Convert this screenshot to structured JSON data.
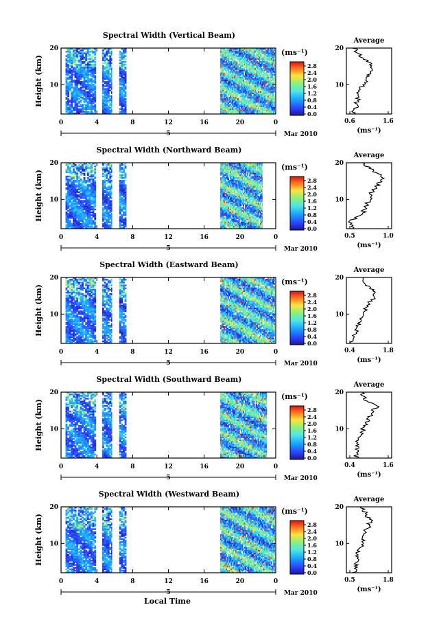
{
  "figure": {
    "xlabel": "Local Time",
    "date_label": "Mar 2010",
    "date_day": "5",
    "height_label": "Height (km)",
    "unit_label": "(ms⁻¹)",
    "avg_title": "Average"
  },
  "chart_data": [
    {
      "type": "heatmap",
      "title": "Spectral Width (Vertical Beam)",
      "xlabel": "Local Time",
      "ylabel": "Height (km)",
      "xlim": [
        0,
        24
      ],
      "ylim": [
        2,
        20
      ],
      "xticks": [
        "0",
        "4",
        "8",
        "12",
        "16",
        "20",
        "0"
      ],
      "yticks": [
        "10",
        "20"
      ],
      "colorbar": {
        "label": "(ms⁻¹)",
        "ticks": [
          "2.8",
          "2.4",
          "2.0",
          "1.6",
          "1.2",
          "0.8",
          "0.4",
          "0.0"
        ]
      },
      "data_intervals_hours": [
        [
          0.5,
          3.9
        ],
        [
          4.6,
          5.7
        ],
        [
          6.5,
          7.3
        ],
        [
          17.8,
          23.9
        ]
      ],
      "average_profile": {
        "xlabel": "(ms⁻¹)",
        "xticks": [
          "0.6",
          "1.6"
        ],
        "yticks": [
          "10",
          "20"
        ],
        "xlim": [
          0.5,
          1.7
        ],
        "heights_km": [
          2,
          4,
          6,
          8,
          10,
          12,
          14,
          16,
          18,
          20
        ],
        "values": [
          0.65,
          0.75,
          0.8,
          0.85,
          0.95,
          1.05,
          1.15,
          1.1,
          0.85,
          0.7
        ]
      }
    },
    {
      "type": "heatmap",
      "title": "Spectral Width (Northward Beam)",
      "xlabel": "Local Time",
      "ylabel": "Height (km)",
      "xlim": [
        0,
        24
      ],
      "ylim": [
        2,
        20
      ],
      "xticks": [
        "0",
        "4",
        "8",
        "12",
        "16",
        "20",
        "0"
      ],
      "yticks": [
        "10",
        "20"
      ],
      "colorbar": {
        "label": "(ms⁻¹)",
        "ticks": [
          "2.8",
          "2.4",
          "2.0",
          "1.6",
          "1.2",
          "0.8",
          "0.4",
          "0.0"
        ]
      },
      "data_intervals_hours": [
        [
          0.5,
          3.9
        ],
        [
          4.6,
          5.7
        ],
        [
          6.5,
          7.3
        ],
        [
          17.8,
          22.5
        ]
      ],
      "average_profile": {
        "xlabel": "(ms⁻¹)",
        "xticks": [
          "0.5",
          "1.0"
        ],
        "yticks": [
          "10",
          "20"
        ],
        "xlim": [
          0.5,
          1.2
        ],
        "heights_km": [
          2,
          4,
          6,
          8,
          10,
          12,
          14,
          16,
          18,
          20
        ],
        "values": [
          0.6,
          0.55,
          0.75,
          0.8,
          0.85,
          0.9,
          1.0,
          1.05,
          0.9,
          0.75
        ]
      }
    },
    {
      "type": "heatmap",
      "title": "Spectral Width (Eastward Beam)",
      "xlabel": "Local Time",
      "ylabel": "Height (km)",
      "xlim": [
        0,
        24
      ],
      "ylim": [
        2,
        20
      ],
      "xticks": [
        "0",
        "4",
        "8",
        "12",
        "16",
        "20",
        "0"
      ],
      "yticks": [
        "10",
        "20"
      ],
      "colorbar": {
        "label": "(ms⁻¹)",
        "ticks": [
          "2.8",
          "2.4",
          "2.0",
          "1.6",
          "1.2",
          "0.8",
          "0.4",
          "0.0"
        ]
      },
      "data_intervals_hours": [
        [
          0.5,
          3.9
        ],
        [
          4.6,
          5.7
        ],
        [
          6.5,
          7.3
        ],
        [
          17.8,
          23.9
        ]
      ],
      "average_profile": {
        "xlabel": "(ms⁻¹)",
        "xticks": [
          "0.4",
          "1.8"
        ],
        "yticks": [
          "10",
          "20"
        ],
        "xlim": [
          0.4,
          1.8
        ],
        "heights_km": [
          2,
          4,
          6,
          8,
          10,
          12,
          14,
          16,
          18,
          20
        ],
        "values": [
          0.55,
          0.65,
          0.75,
          0.8,
          0.9,
          1.05,
          1.2,
          1.3,
          1.0,
          0.9
        ]
      }
    },
    {
      "type": "heatmap",
      "title": "Spectral Width (Southward Beam)",
      "xlabel": "Local Time",
      "ylabel": "Height (km)",
      "xlim": [
        0,
        24
      ],
      "ylim": [
        2,
        20
      ],
      "xticks": [
        "0",
        "4",
        "8",
        "12",
        "16",
        "20",
        "0"
      ],
      "yticks": [
        "10",
        "20"
      ],
      "colorbar": {
        "label": "(ms⁻¹)",
        "ticks": [
          "2.8",
          "2.4",
          "2.0",
          "1.6",
          "1.2",
          "0.8",
          "0.4",
          "0.0"
        ]
      },
      "data_intervals_hours": [
        [
          0.5,
          3.9
        ],
        [
          4.6,
          5.7
        ],
        [
          6.5,
          7.3
        ],
        [
          17.8,
          23.0
        ]
      ],
      "average_profile": {
        "xlabel": "(ms⁻¹)",
        "xticks": [
          "0.4",
          "1.6"
        ],
        "yticks": [
          "10",
          "20"
        ],
        "xlim": [
          0.4,
          1.6
        ],
        "heights_km": [
          2,
          4,
          6,
          8,
          10,
          12,
          14,
          16,
          18,
          20
        ],
        "values": [
          0.65,
          0.7,
          0.7,
          0.75,
          0.85,
          0.95,
          1.05,
          1.2,
          0.9,
          0.8
        ]
      }
    },
    {
      "type": "heatmap",
      "title": "Spectral Width (Westward Beam)",
      "xlabel": "Local Time",
      "ylabel": "Height (km)",
      "xlim": [
        0,
        24
      ],
      "ylim": [
        2,
        20
      ],
      "xticks": [
        "0",
        "4",
        "8",
        "12",
        "16",
        "20",
        "0"
      ],
      "yticks": [
        "10",
        "20"
      ],
      "colorbar": {
        "label": "(ms⁻¹)",
        "ticks": [
          "2.8",
          "2.4",
          "2.0",
          "1.6",
          "1.2",
          "0.8",
          "0.4",
          "0.0"
        ]
      },
      "data_intervals_hours": [
        [
          0.5,
          3.9
        ],
        [
          4.6,
          5.7
        ],
        [
          6.5,
          7.3
        ],
        [
          17.8,
          23.9
        ]
      ],
      "average_profile": {
        "xlabel": "(ms⁻¹)",
        "xticks": [
          "0.5",
          "1.8"
        ],
        "yticks": [
          "10",
          "20"
        ],
        "xlim": [
          0.5,
          1.8
        ],
        "heights_km": [
          2,
          4,
          6,
          8,
          10,
          12,
          14,
          16,
          18,
          20
        ],
        "values": [
          0.7,
          0.8,
          0.8,
          0.85,
          0.95,
          1.0,
          1.1,
          1.2,
          1.05,
          0.95
        ]
      }
    }
  ]
}
